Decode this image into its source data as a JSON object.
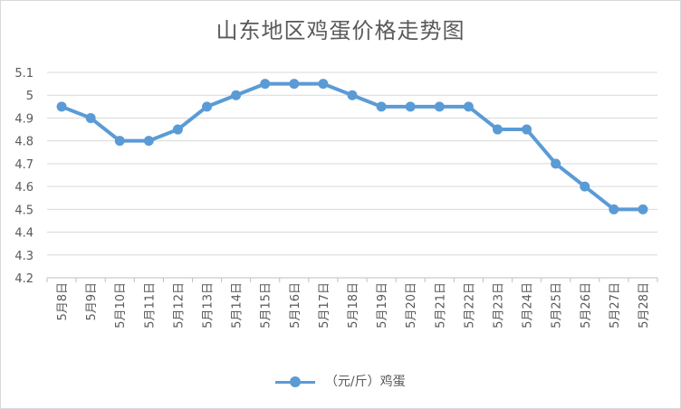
{
  "chart_data": {
    "type": "line",
    "title": "山东地区鸡蛋价格走势图",
    "xlabel": "",
    "ylabel": "",
    "categories": [
      "5月8日",
      "5月9日",
      "5月10日",
      "5月11日",
      "5月12日",
      "5月13日",
      "5月14日",
      "5月15日",
      "5月16日",
      "5月17日",
      "5月18日",
      "5月19日",
      "5月20日",
      "5月21日",
      "5月22日",
      "5月23日",
      "5月24日",
      "5月25日",
      "5月26日",
      "5月27日",
      "5月28日"
    ],
    "series": [
      {
        "name": "（元/斤）鸡蛋",
        "values": [
          4.95,
          4.9,
          4.8,
          4.8,
          4.85,
          4.95,
          5.0,
          5.05,
          5.05,
          5.05,
          5.0,
          4.95,
          4.95,
          4.95,
          4.95,
          4.85,
          4.85,
          4.7,
          4.6,
          4.5,
          4.5
        ],
        "color": "#5b9bd5"
      }
    ],
    "yticks": [
      "4.2",
      "4.3",
      "4.4",
      "4.5",
      "4.6",
      "4.7",
      "4.8",
      "4.9",
      "5",
      "5.1"
    ],
    "ylim": [
      4.2,
      5.1
    ],
    "grid": true,
    "legend_position": "bottom",
    "legend_label": "（元/斤）鸡蛋"
  }
}
